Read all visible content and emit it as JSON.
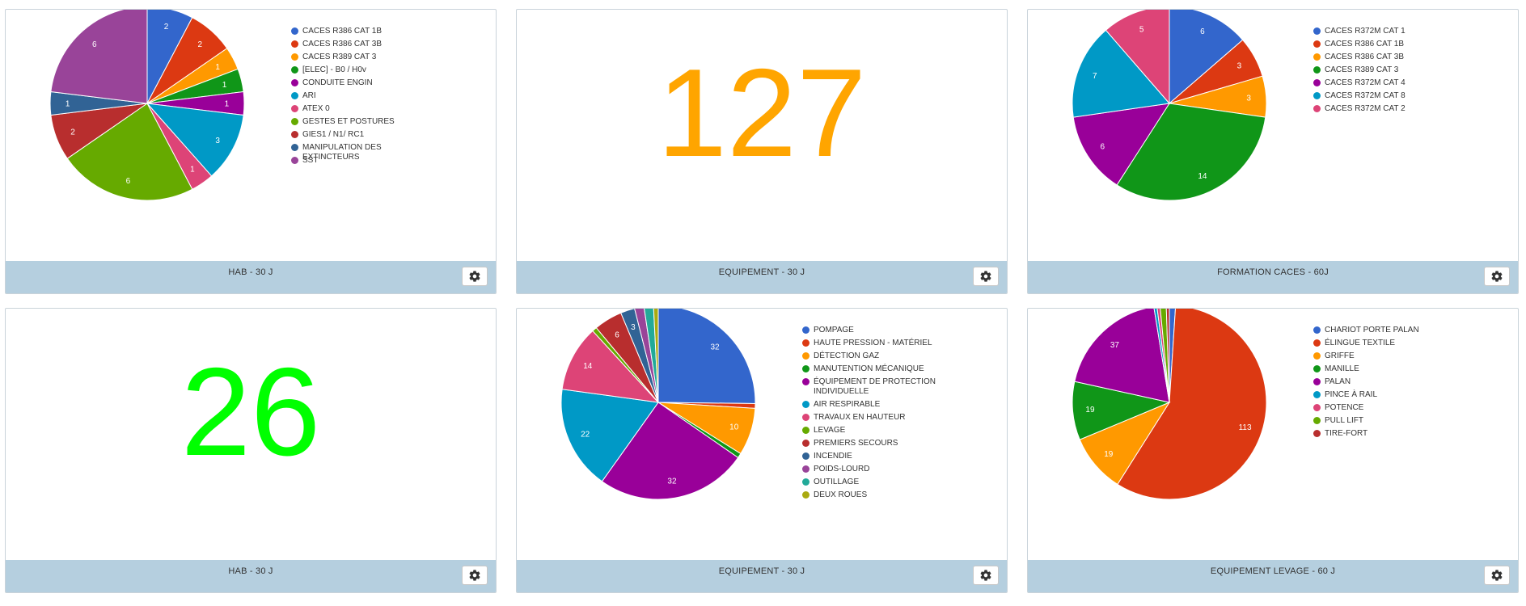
{
  "panels": [
    {
      "footer_title": "HAB - 30 J",
      "chart_data": {
        "type": "pie",
        "categories": [
          "CACES R386 CAT 1B",
          "CACES R386 CAT 3B",
          "CACES R389 CAT 3",
          "[ELEC] - B0 / H0v",
          "CONDUITE ENGIN",
          "ARI",
          "ATEX 0",
          "GESTES ET POSTURES",
          "GIES1 / N1/ RC1",
          "MANIPULATION DES EXTINCTEURS",
          "SST"
        ],
        "values": [
          2,
          2,
          1,
          1,
          1,
          3,
          1,
          6,
          2,
          1,
          6
        ],
        "colors": [
          "#3366cc",
          "#dc3912",
          "#ff9900",
          "#109618",
          "#990099",
          "#0099c6",
          "#dd4477",
          "#66aa00",
          "#b82e2e",
          "#316395",
          "#994499"
        ],
        "legend_position": "right"
      }
    },
    {
      "footer_title": "EQUIPEMENT - 30 J",
      "value": "127",
      "color": "#ffa500"
    },
    {
      "footer_title": "FORMATION CACES - 60J",
      "chart_data": {
        "type": "pie",
        "categories": [
          "CACES R372M CAT 1",
          "CACES R386 CAT 1B",
          "CACES R386 CAT 3B",
          "CACES R389 CAT 3",
          "CACES R372M CAT 4",
          "CACES R372M CAT 8",
          "CACES R372M CAT 2"
        ],
        "values": [
          6,
          3,
          3,
          14,
          6,
          7,
          5
        ],
        "colors": [
          "#3366cc",
          "#dc3912",
          "#ff9900",
          "#109618",
          "#990099",
          "#0099c6",
          "#dd4477"
        ],
        "legend_position": "right"
      }
    },
    {
      "footer_title": "HAB - 30 J",
      "value": "26",
      "color": "#00ff00"
    },
    {
      "footer_title": "EQUIPEMENT - 30 J",
      "chart_data": {
        "type": "pie",
        "categories": [
          "POMPAGE",
          "HAUTE PRESSION - MATÉRIEL",
          "DÉTECTION GAZ",
          "MANUTENTION MÉCANIQUE",
          "ÉQUIPEMENT DE PROTECTION INDIVIDUELLE",
          "AIR RESPIRABLE",
          "TRAVAUX EN HAUTEUR",
          "LEVAGE",
          "PREMIERS SECOURS",
          "INCENDIE",
          "POIDS-LOURD",
          "OUTILLAGE",
          "DEUX ROUES"
        ],
        "values": [
          32,
          1,
          10,
          1,
          32,
          22,
          14,
          1,
          6,
          3,
          2,
          2,
          1
        ],
        "colors": [
          "#3366cc",
          "#dc3912",
          "#ff9900",
          "#109618",
          "#990099",
          "#0099c6",
          "#dd4477",
          "#66aa00",
          "#b82e2e",
          "#316395",
          "#994499",
          "#22aa99",
          "#aaaa11"
        ],
        "legend_position": "right"
      }
    },
    {
      "footer_title": "EQUIPEMENT LEVAGE - 60 J",
      "chart_data": {
        "type": "pie",
        "categories": [
          "CHARIOT PORTE PALAN",
          "ÉLINGUE TEXTILE",
          "GRIFFE",
          "MANILLE",
          "PALAN",
          "PINCE À RAIL",
          "POTENCE",
          "PULL LIFT",
          "TIRE-FORT"
        ],
        "values": [
          2,
          113,
          19,
          19,
          37,
          1,
          1,
          2,
          1
        ],
        "colors": [
          "#3366cc",
          "#dc3912",
          "#ff9900",
          "#109618",
          "#990099",
          "#0099c6",
          "#dd4477",
          "#66aa00",
          "#b82e2e"
        ],
        "legend_position": "right"
      }
    }
  ],
  "icons": {
    "settings": "gear-icon"
  }
}
